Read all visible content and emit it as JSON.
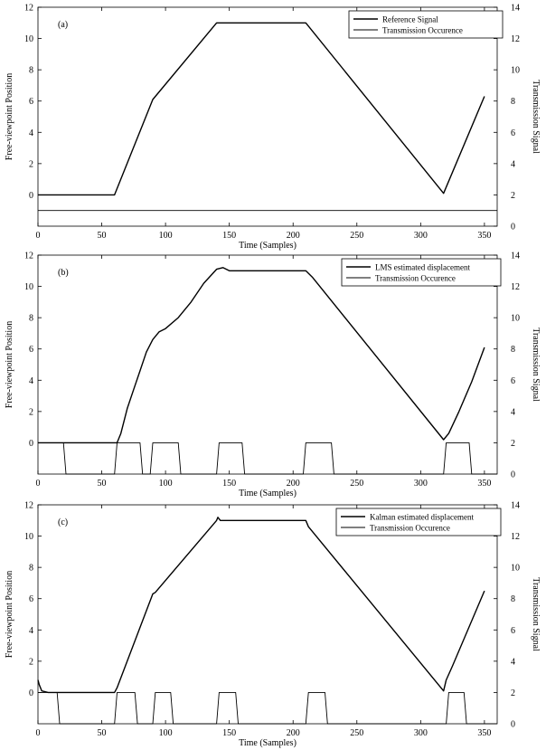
{
  "chart_data": [
    {
      "type": "line",
      "panel_label": "(a)",
      "xlabel": "Time (Samples)",
      "ylabel": "Free-viewpoint Position",
      "y2label": "Transmission Signal",
      "xlim": [
        0,
        360
      ],
      "ylim": [
        -2,
        12
      ],
      "y2lim": [
        0,
        14
      ],
      "xticks": [
        0,
        50,
        100,
        150,
        200,
        250,
        300,
        350
      ],
      "yticks": [
        0,
        2,
        4,
        6,
        8,
        10,
        12
      ],
      "y2ticks": [
        0,
        2,
        4,
        6,
        8,
        10,
        12,
        14
      ],
      "legend_position": "top-right",
      "series": [
        {
          "name": "Reference Signal",
          "axis": "left",
          "x": [
            0,
            60,
            90,
            140,
            210,
            318,
            350
          ],
          "y": [
            0,
            0,
            6.1,
            11,
            11,
            0.1,
            6.3
          ]
        },
        {
          "name": "Transmission Occurence",
          "axis": "right",
          "x": [
            0,
            360
          ],
          "y": [
            1,
            1
          ]
        }
      ]
    },
    {
      "type": "line",
      "panel_label": "(b)",
      "xlabel": "Time (Samples)",
      "ylabel": "Free-viewpoint Position",
      "y2label": "Transmission Signal",
      "xlim": [
        0,
        360
      ],
      "ylim": [
        -2,
        12
      ],
      "y2lim": [
        0,
        14
      ],
      "xticks": [
        0,
        50,
        100,
        150,
        200,
        250,
        300,
        350
      ],
      "yticks": [
        0,
        2,
        4,
        6,
        8,
        10,
        12
      ],
      "y2ticks": [
        0,
        2,
        4,
        6,
        8,
        10,
        12,
        14
      ],
      "legend_position": "top-right",
      "series": [
        {
          "name": "LMS estimated displacement",
          "axis": "left",
          "x": [
            0,
            62,
            65,
            70,
            75,
            80,
            85,
            90,
            95,
            100,
            110,
            120,
            130,
            140,
            145,
            150,
            210,
            215,
            318,
            322,
            330,
            340,
            350
          ],
          "y": [
            0,
            0,
            0.6,
            2.2,
            3.4,
            4.6,
            5.8,
            6.6,
            7.1,
            7.3,
            8.0,
            9.0,
            10.2,
            11.1,
            11.2,
            11.0,
            11.0,
            10.6,
            0.2,
            0.6,
            2.0,
            3.9,
            6.1
          ]
        },
        {
          "name": "Transmission Occurence",
          "axis": "right",
          "x": [
            0,
            20,
            22,
            60,
            62,
            80,
            82,
            88,
            90,
            110,
            112,
            140,
            142,
            160,
            162,
            208,
            210,
            230,
            232,
            318,
            320,
            338,
            340,
            360
          ],
          "y": [
            2,
            2,
            0,
            0,
            2,
            2,
            0,
            0,
            2,
            2,
            0,
            0,
            2,
            2,
            0,
            0,
            2,
            2,
            0,
            0,
            2,
            2,
            0,
            0
          ]
        }
      ]
    },
    {
      "type": "line",
      "panel_label": "(c)",
      "xlabel": "Time (Samples)",
      "ylabel": "Free-viewpoint Position",
      "y2label": "Transmission Signal",
      "xlim": [
        0,
        360
      ],
      "ylim": [
        -2,
        12
      ],
      "y2lim": [
        0,
        14
      ],
      "xticks": [
        0,
        50,
        100,
        150,
        200,
        250,
        300,
        350
      ],
      "yticks": [
        0,
        2,
        4,
        6,
        8,
        10,
        12
      ],
      "y2ticks": [
        0,
        2,
        4,
        6,
        8,
        10,
        12,
        14
      ],
      "legend_position": "top-right",
      "series": [
        {
          "name": "Kalman estimated displacement",
          "axis": "left",
          "x": [
            0,
            1,
            3,
            8,
            60,
            62,
            90,
            92,
            140,
            141,
            143,
            210,
            212,
            318,
            320,
            325,
            350
          ],
          "y": [
            0.8,
            0.5,
            0.1,
            0.0,
            0.0,
            0.3,
            6.3,
            6.4,
            11.0,
            11.2,
            11.0,
            11.0,
            10.6,
            0.1,
            0.8,
            1.7,
            6.5
          ]
        },
        {
          "name": "Transmission Occurence",
          "axis": "right",
          "x": [
            0,
            15,
            17,
            60,
            62,
            76,
            78,
            90,
            92,
            104,
            106,
            140,
            142,
            155,
            157,
            210,
            212,
            225,
            227,
            320,
            322,
            334,
            336,
            360
          ],
          "y": [
            2,
            2,
            0,
            0,
            2,
            2,
            0,
            0,
            2,
            2,
            0,
            0,
            2,
            2,
            0,
            0,
            2,
            2,
            0,
            0,
            2,
            2,
            0,
            0
          ]
        }
      ]
    }
  ]
}
